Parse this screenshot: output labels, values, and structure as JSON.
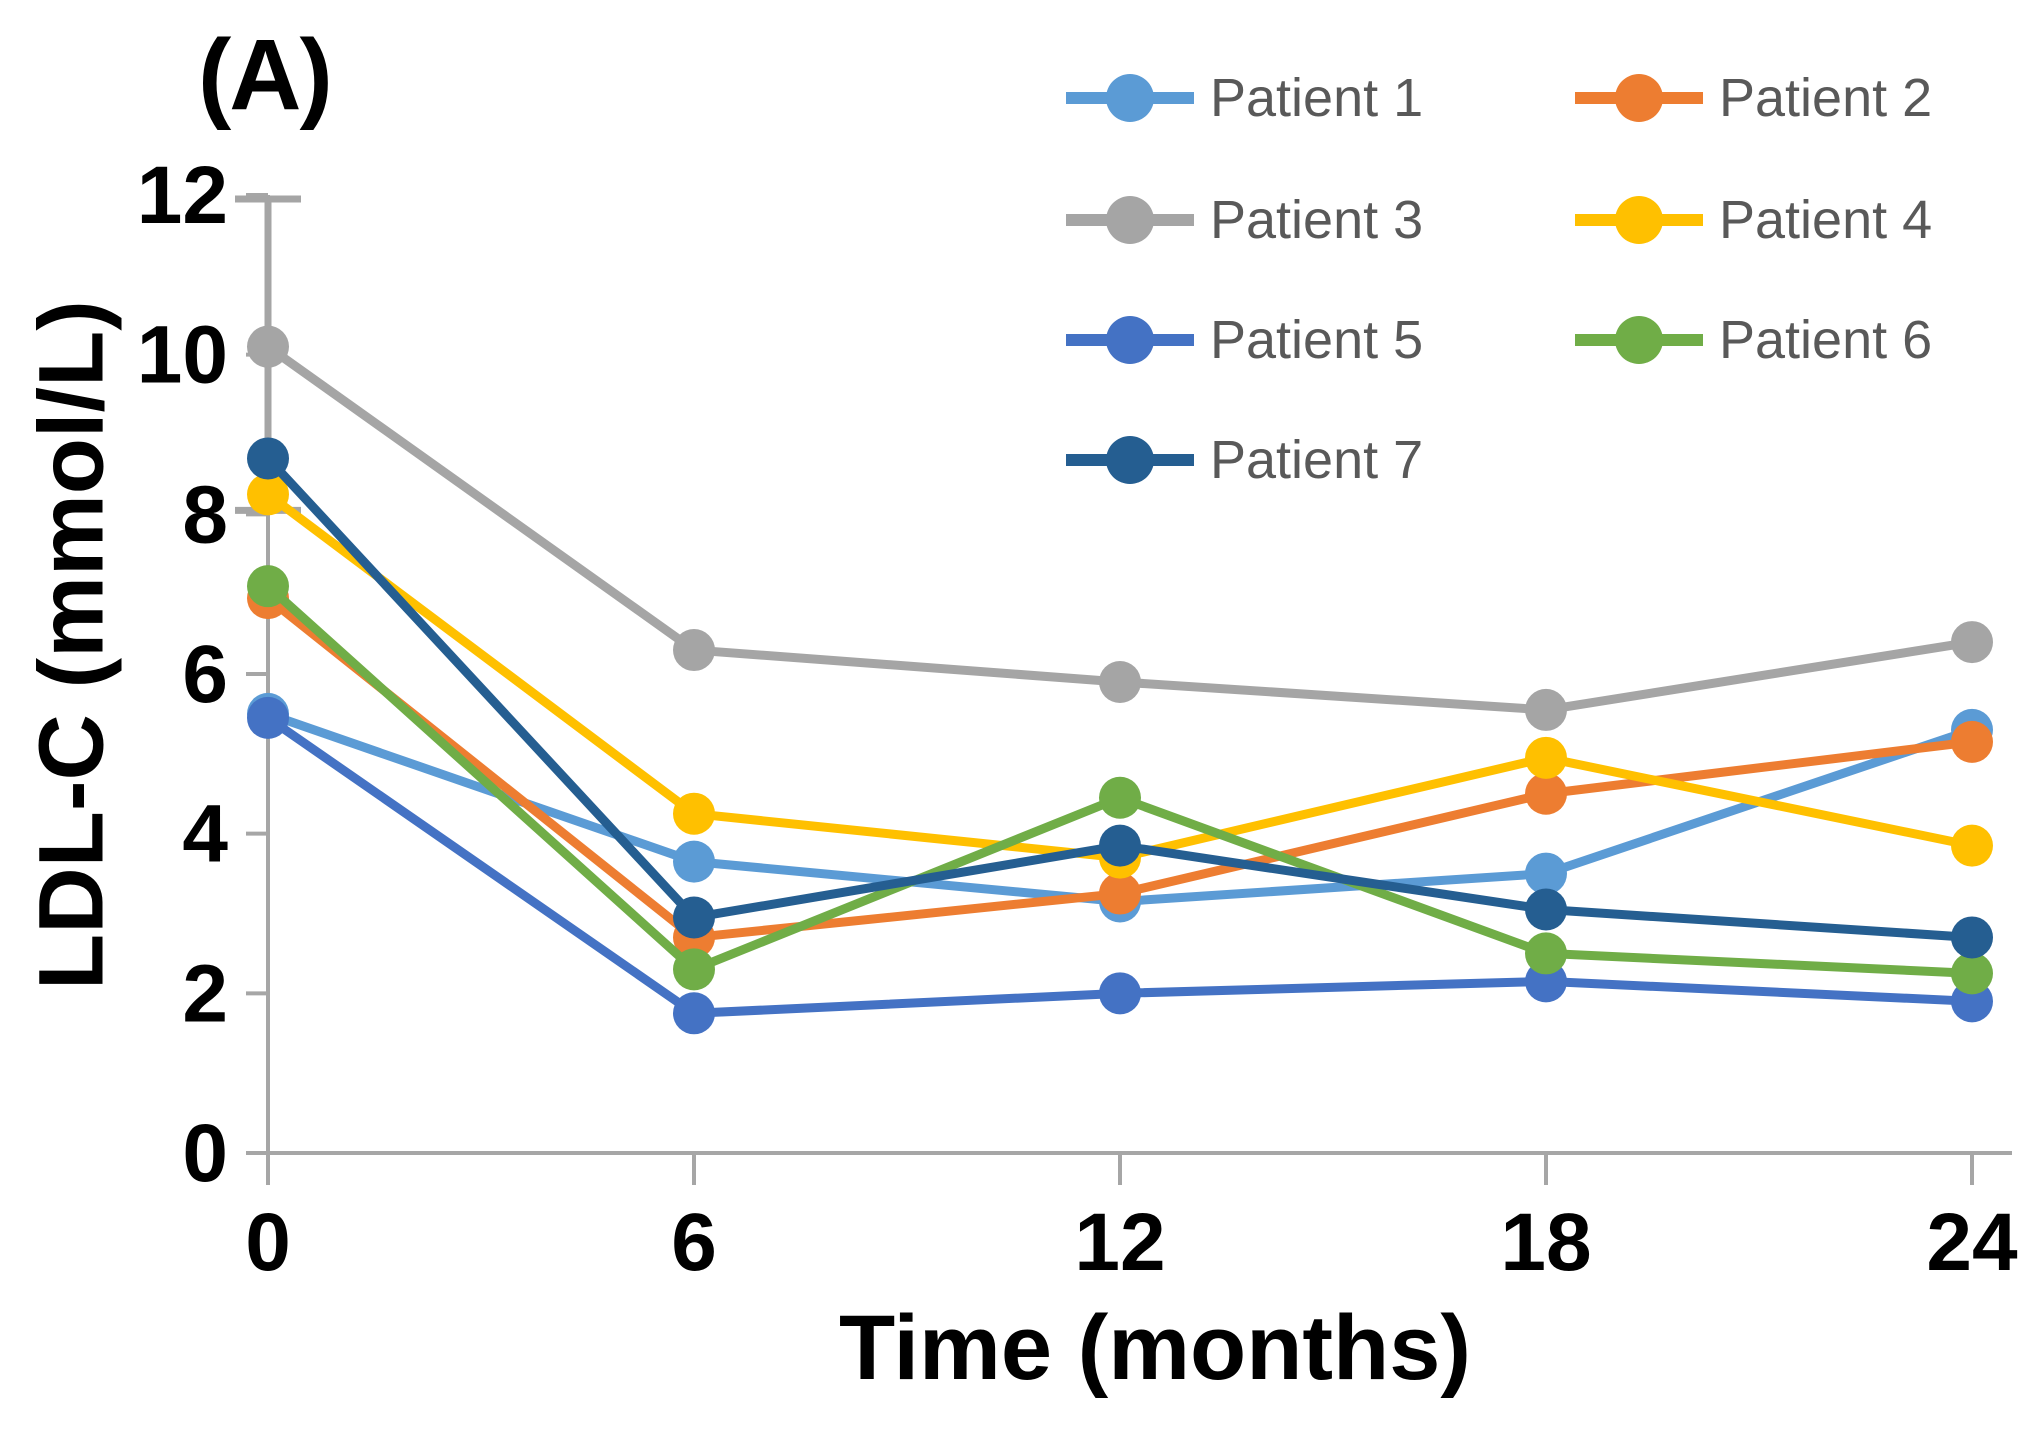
{
  "panel_label": "(A)",
  "chart_data": {
    "type": "line",
    "title": "",
    "xlabel": "Time (months)",
    "ylabel": "LDL-C (mmol/L)",
    "x": [
      0,
      6,
      12,
      18,
      24
    ],
    "x_tick_labels": [
      "0",
      "6",
      "12",
      "18",
      "24"
    ],
    "y_ticks": [
      0,
      2,
      4,
      6,
      8,
      10,
      12
    ],
    "y_tick_labels": [
      "0",
      "2",
      "4",
      "6",
      "8",
      "10",
      "12"
    ],
    "xlim": [
      0,
      24
    ],
    "ylim": [
      0,
      12
    ],
    "grid": false,
    "legend_position": "top-right-two-columns",
    "series": [
      {
        "name": "Patient 1",
        "color": "#5B9BD5",
        "values": [
          5.5,
          3.65,
          3.15,
          3.5,
          5.3
        ]
      },
      {
        "name": "Patient 2",
        "color": "#ED7D31",
        "values": [
          6.95,
          2.7,
          3.25,
          4.5,
          5.15
        ]
      },
      {
        "name": "Patient 3",
        "color": "#A5A5A5",
        "values": [
          10.1,
          6.3,
          5.9,
          5.55,
          6.4
        ],
        "error_bar": {
          "x": 0,
          "low": 8.05,
          "high": 11.95
        }
      },
      {
        "name": "Patient 4",
        "color": "#FFC000",
        "values": [
          8.25,
          4.25,
          3.7,
          4.95,
          3.85
        ]
      },
      {
        "name": "Patient 5",
        "color": "#4472C4",
        "values": [
          5.45,
          1.75,
          2.0,
          2.15,
          1.9
        ]
      },
      {
        "name": "Patient 6",
        "color": "#70AD47",
        "values": [
          7.1,
          2.3,
          4.45,
          2.5,
          2.25
        ]
      },
      {
        "name": "Patient 7",
        "color": "#255E91",
        "values": [
          8.7,
          2.95,
          3.85,
          3.05,
          2.7
        ]
      }
    ]
  },
  "style_colors": {
    "axis": "#A6A6A6",
    "error_bar": "#A5A5A5",
    "tick_label": "#000000",
    "legend_text": "#595959"
  }
}
